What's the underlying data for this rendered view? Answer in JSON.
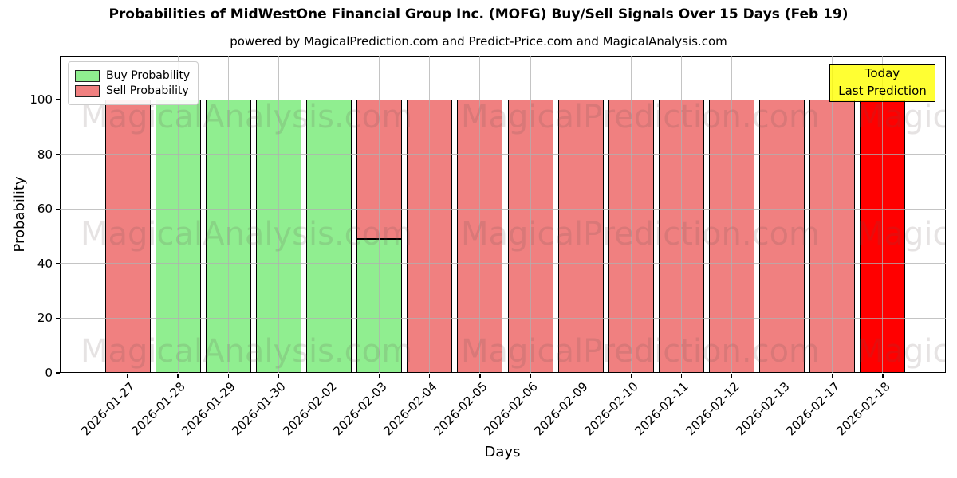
{
  "title": "Probabilities of MidWestOne Financial Group Inc. (MOFG) Buy/Sell Signals Over 15 Days (Feb 19)",
  "subtitle": "powered by MagicalPrediction.com and Predict-Price.com and MagicalAnalysis.com",
  "axes": {
    "xlabel": "Days",
    "ylabel": "Probability"
  },
  "legend": {
    "buy_label": "Buy Probability",
    "sell_label": "Sell Probability"
  },
  "annotation": {
    "line1": "Today",
    "line2": "Last Prediction"
  },
  "watermarks": {
    "left_text": "MagicalAnalysis.com",
    "right_text": "MagicalPrediction.com"
  },
  "colors": {
    "buy": "#90EE90",
    "sell": "#F08080",
    "today": "#FF0000",
    "bar_edge": "#000000",
    "grid": "rgba(176,176,176,0.75)",
    "dashed_line": "#7a7a7a",
    "annotation_bg": "rgba(255,255,0,0.8)",
    "watermark": "rgba(100,80,80,0.16)"
  },
  "chart_data": {
    "type": "bar",
    "stacked": true,
    "title": "Probabilities of MidWestOne Financial Group Inc. (MOFG) Buy/Sell Signals Over 15 Days (Feb 19)",
    "xlabel": "Days",
    "ylabel": "Probability",
    "categories": [
      "2026-01-27",
      "2026-01-28",
      "2026-01-29",
      "2026-01-30",
      "2026-02-02",
      "2026-02-03",
      "2026-02-04",
      "2026-02-05",
      "2026-02-06",
      "2026-02-09",
      "2026-02-10",
      "2026-02-11",
      "2026-02-12",
      "2026-02-13",
      "2026-02-17",
      "2026-02-18"
    ],
    "series": [
      {
        "name": "Buy Probability",
        "color": "#90EE90",
        "values": [
          0,
          100,
          100,
          100,
          100,
          49,
          0,
          0,
          0,
          0,
          0,
          0,
          0,
          0,
          0,
          0
        ]
      },
      {
        "name": "Sell Probability",
        "color": "#F08080",
        "values": [
          100,
          0,
          0,
          0,
          0,
          51,
          100,
          100,
          100,
          100,
          100,
          100,
          100,
          100,
          100,
          100
        ]
      }
    ],
    "today_index": 15,
    "today_bar_color": "#FF0000",
    "ylim": [
      0,
      116
    ],
    "yticks": [
      0,
      20,
      40,
      60,
      80,
      100
    ],
    "dashed_line_y": 110,
    "grid": true,
    "legend_position": "upper left"
  }
}
